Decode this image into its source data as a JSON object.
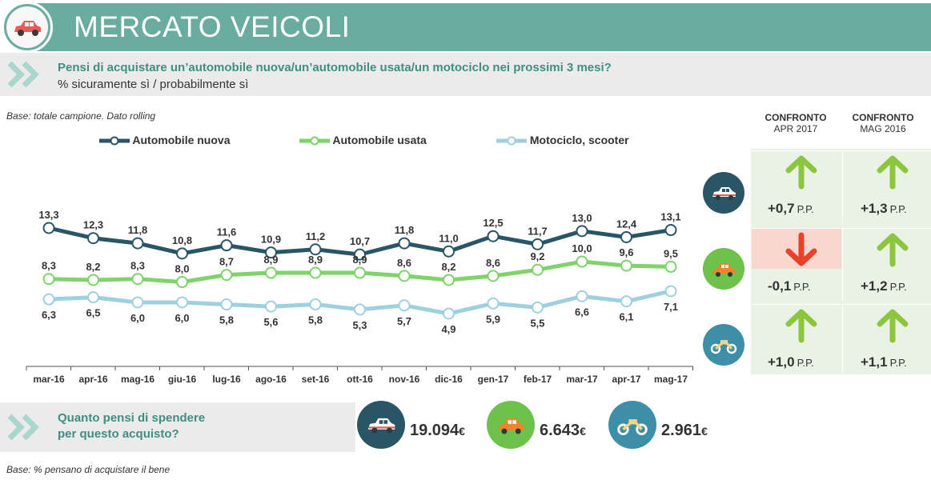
{
  "header": {
    "title": "MERCATO VEICOLI"
  },
  "question": {
    "main": "Pensi di acquistare un’automobile nuova/un’automobile usata/un motociclo nei prossimi 3 mesi?",
    "sub": "% sicuramente sì / probabilmente sì"
  },
  "base_note": "Base: totale campione. Dato rolling",
  "base_note_bottom": "Base: % pensano di acquistare il bene",
  "chart_data": {
    "type": "line",
    "categories": [
      "mar-16",
      "apr-16",
      "mag-16",
      "giu-16",
      "lug-16",
      "ago-16",
      "set-16",
      "ott-16",
      "nov-16",
      "dic-16",
      "gen-17",
      "feb-17",
      "mar-17",
      "apr-17",
      "mag-17"
    ],
    "series": [
      {
        "name": "Automobile nuova",
        "color": "#2a5566",
        "values": [
          13.3,
          12.3,
          11.8,
          10.8,
          11.6,
          10.9,
          11.2,
          10.7,
          11.8,
          11.0,
          12.5,
          11.7,
          13.0,
          12.4,
          13.1
        ],
        "labels": [
          "13,3",
          "12,3",
          "11,8",
          "10,8",
          "11,6",
          "10,9",
          "11,2",
          "10,7",
          "11,8",
          "11,0",
          "12,5",
          "11,7",
          "13,0",
          "12,4",
          "13,1"
        ]
      },
      {
        "name": "Automobile usata",
        "color": "#7ed36a",
        "values": [
          8.3,
          8.2,
          8.3,
          8.0,
          8.7,
          8.9,
          8.9,
          8.9,
          8.6,
          8.2,
          8.6,
          9.2,
          10.0,
          9.6,
          9.5
        ],
        "labels": [
          "8,3",
          "8,2",
          "8,3",
          "8,0",
          "8,7",
          "8,9",
          "8,9",
          "8,9",
          "8,6",
          "8,2",
          "8,6",
          "9,2",
          "10,0",
          "9,6",
          "9,5"
        ]
      },
      {
        "name": "Motociclo, scooter",
        "color": "#9fd0e0",
        "values": [
          6.3,
          6.5,
          6.0,
          6.0,
          5.8,
          5.6,
          5.8,
          5.3,
          5.7,
          4.9,
          5.9,
          5.5,
          6.6,
          6.1,
          7.1
        ],
        "labels": [
          "6,3",
          "6,5",
          "6,0",
          "6,0",
          "5,8",
          "5,6",
          "5,8",
          "5,3",
          "5,7",
          "4,9",
          "5,9",
          "5,5",
          "6,6",
          "6,1",
          "7,1"
        ]
      }
    ],
    "legend_position": "top",
    "grid": false
  },
  "comparison": {
    "headers": [
      {
        "bold": "CONFRONTO",
        "sub": "APR 2017"
      },
      {
        "bold": "CONFRONTO",
        "sub": "MAG 2016"
      }
    ],
    "unit": "P.P.",
    "rows": [
      {
        "vehicle": "car-new-icon",
        "values": [
          "+0,7",
          "+1,3"
        ],
        "directions": [
          "up",
          "up"
        ]
      },
      {
        "vehicle": "car-used-icon",
        "values": [
          "-0,1",
          "+1,2"
        ],
        "directions": [
          "down",
          "up"
        ]
      },
      {
        "vehicle": "motorbike-icon",
        "values": [
          "+1,0",
          "+1,1"
        ],
        "directions": [
          "up",
          "up"
        ]
      }
    ],
    "colors": {
      "up": "#8cc63f",
      "down": "#e8432a",
      "down_bg": "#f9d6cf",
      "panel": "#e9f2e4"
    }
  },
  "spend": {
    "question_line1": "Quanto pensi di spendere",
    "question_line2": "per questo acquisto?",
    "items": [
      {
        "icon": "car-new-icon",
        "value": "19.094",
        "currency": "€"
      },
      {
        "icon": "car-used-icon",
        "value": "6.643",
        "currency": "€"
      },
      {
        "icon": "motorbike-icon",
        "value": "2.961",
        "currency": "€"
      }
    ]
  },
  "colors": {
    "accent": "#6aada0",
    "question_text": "#3e8f82",
    "dark_icon": "#2a5566",
    "green_icon": "#6cc24a",
    "blue_icon": "#3c8fa6"
  }
}
